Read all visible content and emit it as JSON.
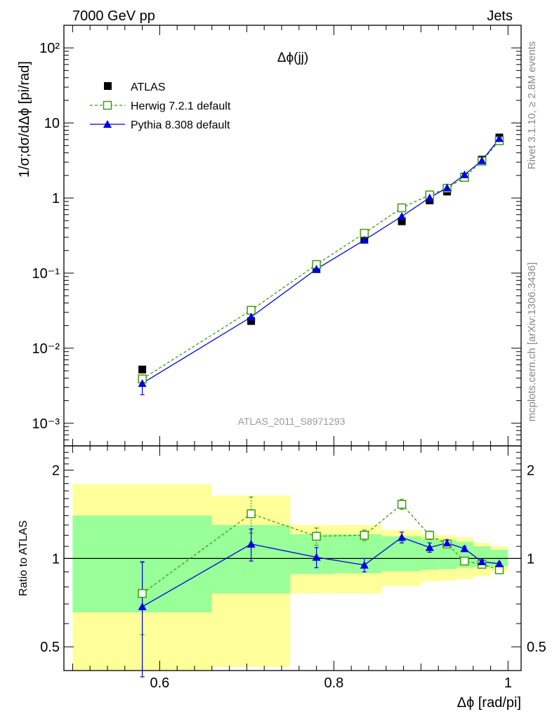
{
  "header": {
    "left": "7000 GeV pp",
    "right": "Jets"
  },
  "side_labels": {
    "rivet": "Rivet 3.1.10, ≥ 2.8M events",
    "mcplots": "mcplots.cern.ch [arXiv:1306.3436]"
  },
  "plot_title": "Δϕ(jj)",
  "watermark": "ATLAS_2011_S8971293",
  "colors": {
    "atlas": "#000000",
    "herwig": "#3f9a10",
    "pythia": "#0000e0",
    "band_inner": "#99ff99",
    "band_outer": "#ffff99"
  },
  "legend": [
    {
      "label": "ATLAS",
      "marker": "filled-square"
    },
    {
      "label": "Herwig 7.2.1 default",
      "marker": "open-square-dashed"
    },
    {
      "label": "Pythia 8.308 default",
      "marker": "filled-triangle-solid"
    }
  ],
  "chart_data": [
    {
      "type": "scatter",
      "panel": "main",
      "ylabel": "1/σ;dσ/dΔϕ [pi/rad]",
      "yscale": "log",
      "ylim": [
        0.0005,
        200
      ],
      "xlim": [
        0.49,
        1.015
      ],
      "ytick_labels": [
        "10⁻³",
        "10⁻²",
        "10⁻¹",
        "1",
        "10",
        "10²"
      ],
      "x": [
        0.58,
        0.705,
        0.78,
        0.835,
        0.878,
        0.91,
        0.93,
        0.95,
        0.97,
        0.99
      ],
      "series": [
        {
          "name": "ATLAS",
          "values": [
            0.0052,
            0.023,
            0.113,
            0.29,
            0.49,
            0.93,
            1.22,
            1.93,
            3.25,
            6.4
          ]
        },
        {
          "name": "Herwig 7.2.1 default",
          "values": [
            0.0039,
            0.032,
            0.13,
            0.34,
            0.74,
            1.1,
            1.35,
            1.88,
            3.1,
            5.8
          ]
        },
        {
          "name": "Pythia 8.308 default",
          "values": [
            0.0034,
            0.026,
            0.113,
            0.275,
            0.57,
            1.01,
            1.37,
            2.05,
            3.15,
            6.2
          ],
          "errors": [
            0.001,
            0,
            0,
            0,
            0,
            0,
            0,
            0,
            0,
            0
          ]
        }
      ]
    },
    {
      "type": "line",
      "panel": "ratio",
      "ylabel": "Ratio to ATLAS",
      "xlabel": "Δϕ [rad/pi]",
      "yscale": "log",
      "ylim": [
        0.415,
        2.42
      ],
      "xlim": [
        0.49,
        1.015
      ],
      "ytick_labels": [
        "0.5",
        "1",
        "2"
      ],
      "xtick_labels": [
        "0.6",
        "0.8",
        "1"
      ],
      "x": [
        0.58,
        0.705,
        0.78,
        0.835,
        0.878,
        0.91,
        0.93,
        0.95,
        0.97,
        0.99
      ],
      "series": [
        {
          "name": "Herwig 7.2.1 default",
          "values": [
            0.76,
            1.42,
            1.19,
            1.2,
            1.53,
            1.2,
            1.12,
            0.98,
            0.955,
            0.915
          ],
          "errors": [
            0.21,
            0.2,
            0.08,
            0.05,
            0.06,
            0.04,
            0.03,
            0.02,
            0.015,
            0.01
          ]
        },
        {
          "name": "Pythia 8.308 default",
          "values": [
            0.685,
            1.12,
            1.01,
            0.95,
            1.18,
            1.09,
            1.13,
            1.08,
            0.975,
            0.96
          ],
          "errors": [
            0.29,
            0.14,
            0.08,
            0.05,
            0.05,
            0.04,
            0.03,
            0.02,
            0.015,
            0.01
          ]
        }
      ],
      "bands": [
        {
          "x0": 0.5,
          "x1": 0.66,
          "inner": [
            0.655,
            1.4
          ],
          "outer": [
            0.415,
            1.79
          ]
        },
        {
          "x0": 0.66,
          "x1": 0.75,
          "inner": [
            0.76,
            1.3
          ],
          "outer": [
            0.427,
            1.64
          ]
        },
        {
          "x0": 0.75,
          "x1": 0.8,
          "inner": [
            0.885,
            1.21
          ],
          "outer": [
            0.76,
            1.3
          ]
        },
        {
          "x0": 0.8,
          "x1": 0.855,
          "inner": [
            0.89,
            1.21
          ],
          "outer": [
            0.76,
            1.3
          ]
        },
        {
          "x0": 0.855,
          "x1": 0.9,
          "inner": [
            0.905,
            1.19
          ],
          "outer": [
            0.805,
            1.25
          ]
        },
        {
          "x0": 0.9,
          "x1": 0.92,
          "inner": [
            0.915,
            1.17
          ],
          "outer": [
            0.835,
            1.21
          ]
        },
        {
          "x0": 0.92,
          "x1": 0.94,
          "inner": [
            0.92,
            1.16
          ],
          "outer": [
            0.84,
            1.2
          ]
        },
        {
          "x0": 0.94,
          "x1": 0.96,
          "inner": [
            0.93,
            1.14
          ],
          "outer": [
            0.85,
            1.18
          ]
        },
        {
          "x0": 0.96,
          "x1": 0.98,
          "inner": [
            0.935,
            1.1
          ],
          "outer": [
            0.87,
            1.13
          ]
        },
        {
          "x0": 0.98,
          "x1": 1.0,
          "inner": [
            0.94,
            1.07
          ],
          "outer": [
            0.9,
            1.1
          ]
        }
      ]
    }
  ]
}
